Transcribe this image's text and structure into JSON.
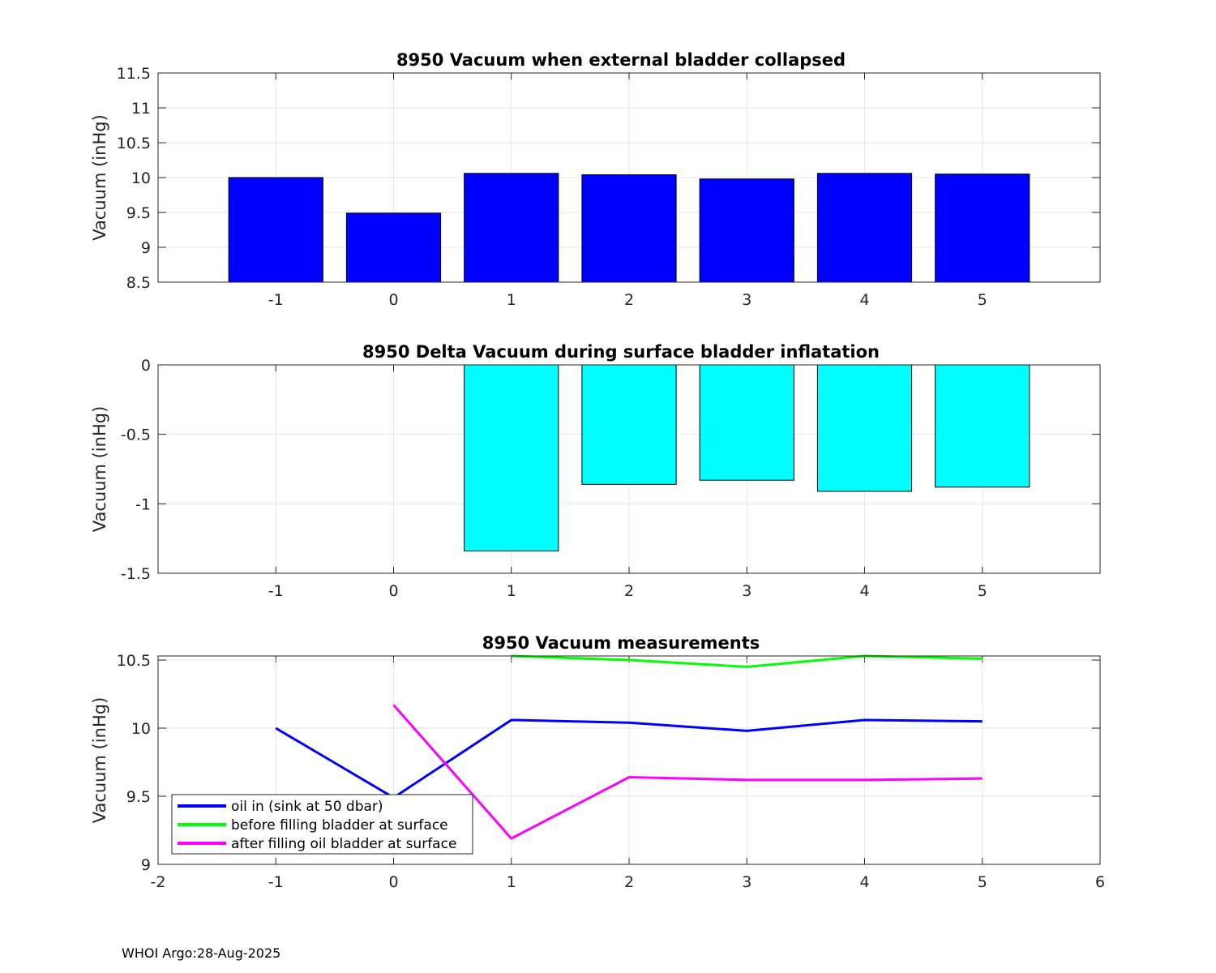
{
  "chart_data": [
    {
      "type": "bar",
      "title": "8950 Vacuum when external bladder collapsed",
      "xlabel": "",
      "ylabel": "Vacuum (inHg)",
      "categories": [
        "-1",
        "0",
        "1",
        "2",
        "3",
        "4",
        "5"
      ],
      "x": [
        -1,
        0,
        1,
        2,
        3,
        4,
        5
      ],
      "values": [
        10.0,
        9.49,
        10.06,
        10.04,
        9.98,
        10.06,
        10.05
      ],
      "xlim": [
        -2,
        6
      ],
      "ylim": [
        8.5,
        11.5
      ],
      "yticks": [
        "8.5",
        "9",
        "9.5",
        "10",
        "10.5",
        "11",
        "11.5"
      ],
      "grid": true,
      "color": "#0000ff"
    },
    {
      "type": "bar",
      "title": "8950 Delta Vacuum during surface bladder inflatation",
      "xlabel": "",
      "ylabel": "Vacuum (inHg)",
      "categories": [
        "-1",
        "0",
        "1",
        "2",
        "3",
        "4",
        "5"
      ],
      "x": [
        1,
        2,
        3,
        4,
        5
      ],
      "values": [
        -1.34,
        -0.86,
        -0.83,
        -0.91,
        -0.88
      ],
      "xlim": [
        -2,
        6
      ],
      "ylim": [
        -1.5,
        0
      ],
      "yticks": [
        "-1.5",
        "-1",
        "-0.5",
        "0"
      ],
      "grid": true,
      "color": "#00ffff"
    },
    {
      "type": "line",
      "title": "8950 Vacuum measurements",
      "xlabel": "",
      "ylabel": "Vacuum (inHg)",
      "xlim": [
        -2,
        6
      ],
      "ylim": [
        9,
        10.53
      ],
      "xticks": [
        "-2",
        "-1",
        "0",
        "1",
        "2",
        "3",
        "4",
        "5",
        "6"
      ],
      "yticks": [
        "9",
        "9.5",
        "10",
        "10.5"
      ],
      "grid": true,
      "legend_position": "bottom-left",
      "series": [
        {
          "name": "oil in (sink at 50 dbar)",
          "color": "#0000ff",
          "x": [
            -1,
            0,
            1,
            2,
            3,
            4,
            5
          ],
          "y": [
            10.0,
            9.49,
            10.06,
            10.04,
            9.98,
            10.06,
            10.05
          ]
        },
        {
          "name": "before filling bladder at surface",
          "color": "#00ff00",
          "x": [
            1,
            2,
            3,
            4,
            5
          ],
          "y": [
            10.53,
            10.5,
            10.45,
            10.53,
            10.51
          ]
        },
        {
          "name": "after filling oil bladder at surface",
          "color": "#ff00ff",
          "x": [
            0,
            1,
            2,
            3,
            4,
            5
          ],
          "y": [
            10.17,
            9.19,
            9.64,
            9.62,
            9.62,
            9.63
          ]
        }
      ]
    }
  ],
  "footer": {
    "text": "WHOI Argo:28-Aug-2025"
  }
}
